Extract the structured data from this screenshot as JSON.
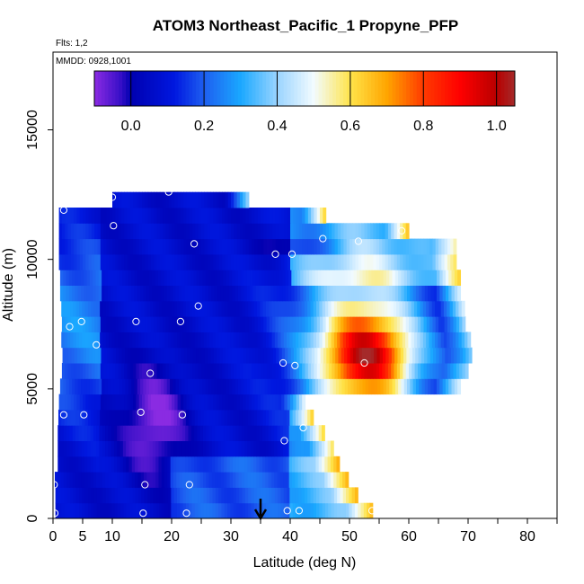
{
  "chart_data": {
    "type": "heatmap",
    "title": "ATOM3 Northeast_Pacific_1 Propyne_PFP",
    "flights_text": "Flts: 1,2",
    "dates_text": "MMDD: 0928,1001",
    "xlabel": "Latitude (deg N)",
    "ylabel": "Altitude (m)",
    "xlim": [
      0,
      85
    ],
    "ylim": [
      0,
      18000
    ],
    "x_ticks": [
      0,
      5,
      10,
      20,
      30,
      40,
      50,
      60,
      70,
      80
    ],
    "x_minor_ticks": [
      15,
      25,
      35,
      45,
      55,
      65,
      75,
      85
    ],
    "y_ticks": [
      0,
      5000,
      10000,
      15000
    ],
    "colorbar": {
      "range": [
        -0.1,
        1.05
      ],
      "ticks": [
        0.0,
        0.2,
        0.4,
        0.6,
        0.8,
        1.0
      ],
      "tick_labels": [
        "0.0",
        "0.2",
        "0.4",
        "0.6",
        "0.8",
        "1.0"
      ],
      "stops": [
        {
          "v": -0.1,
          "c": "#8a2be2"
        },
        {
          "v": -0.03,
          "c": "#3a10c8"
        },
        {
          "v": 0.0,
          "c": "#0000b0"
        },
        {
          "v": 0.12,
          "c": "#0018e0"
        },
        {
          "v": 0.2,
          "c": "#1e5ff0"
        },
        {
          "v": 0.3,
          "c": "#1aa8ff"
        },
        {
          "v": 0.4,
          "c": "#9ad4ff"
        },
        {
          "v": 0.5,
          "c": "#f2fbff"
        },
        {
          "v": 0.6,
          "c": "#ffe44a"
        },
        {
          "v": 0.7,
          "c": "#ffa500"
        },
        {
          "v": 0.8,
          "c": "#ff3a00"
        },
        {
          "v": 0.9,
          "c": "#ff0000"
        },
        {
          "v": 1.0,
          "c": "#b80000"
        },
        {
          "v": 1.05,
          "c": "#a52a2a"
        }
      ]
    },
    "flight_marker_latitude": 35,
    "sample_points": [
      {
        "lat": 0.3,
        "alt": 200
      },
      {
        "lat": 15.2,
        "alt": 200
      },
      {
        "lat": 22.5,
        "alt": 200
      },
      {
        "lat": 39.5,
        "alt": 300
      },
      {
        "lat": 41.5,
        "alt": 300
      },
      {
        "lat": 53.8,
        "alt": 300
      },
      {
        "lat": 0.2,
        "alt": 1300
      },
      {
        "lat": 15.5,
        "alt": 1300
      },
      {
        "lat": 23,
        "alt": 1300
      },
      {
        "lat": 39,
        "alt": 3000
      },
      {
        "lat": 53,
        "alt": 2900
      },
      {
        "lat": 42.2,
        "alt": 3500
      },
      {
        "lat": 1.8,
        "alt": 4000
      },
      {
        "lat": 5.2,
        "alt": 4000
      },
      {
        "lat": 14.8,
        "alt": 4100
      },
      {
        "lat": 21.8,
        "alt": 4000
      },
      {
        "lat": 16.4,
        "alt": 5600
      },
      {
        "lat": 38.8,
        "alt": 6000
      },
      {
        "lat": 40.8,
        "alt": 5900
      },
      {
        "lat": 52.5,
        "alt": 6000
      },
      {
        "lat": 7.3,
        "alt": 6700
      },
      {
        "lat": 2.8,
        "alt": 7400
      },
      {
        "lat": 4.8,
        "alt": 7600
      },
      {
        "lat": 14,
        "alt": 7600
      },
      {
        "lat": 21.5,
        "alt": 7600
      },
      {
        "lat": 24.5,
        "alt": 8200
      },
      {
        "lat": 37.5,
        "alt": 10200
      },
      {
        "lat": 40.3,
        "alt": 10200
      },
      {
        "lat": 23.8,
        "alt": 10600
      },
      {
        "lat": 45.5,
        "alt": 10800
      },
      {
        "lat": 51.5,
        "alt": 10700
      },
      {
        "lat": 58.8,
        "alt": 11100
      },
      {
        "lat": 68.8,
        "alt": 10900
      },
      {
        "lat": 10.2,
        "alt": 11300
      },
      {
        "lat": 1.8,
        "alt": 11900
      },
      {
        "lat": 10,
        "alt": 12400
      },
      {
        "lat": 19.5,
        "alt": 12600
      }
    ],
    "field_regions": [
      {
        "name": "plume",
        "lat": 53,
        "alt": 6200,
        "rx": 7.5,
        "ry": 1600,
        "value": 1.0
      },
      {
        "name": "plume-halo",
        "lat": 52,
        "alt": 7000,
        "rx": 11,
        "ry": 3600,
        "value": 0.52
      },
      {
        "name": "low-trough",
        "lat": 17,
        "alt": 3700,
        "rx": 5,
        "ry": 2000,
        "value": -0.05
      },
      {
        "name": "upper-trough",
        "lat": 42,
        "alt": 10600,
        "rx": 6,
        "ry": 450,
        "value": -0.05
      },
      {
        "name": "west-column",
        "lat": 3,
        "alt": 7800,
        "rx": 4,
        "ry": 3000,
        "value": 0.26
      }
    ]
  }
}
